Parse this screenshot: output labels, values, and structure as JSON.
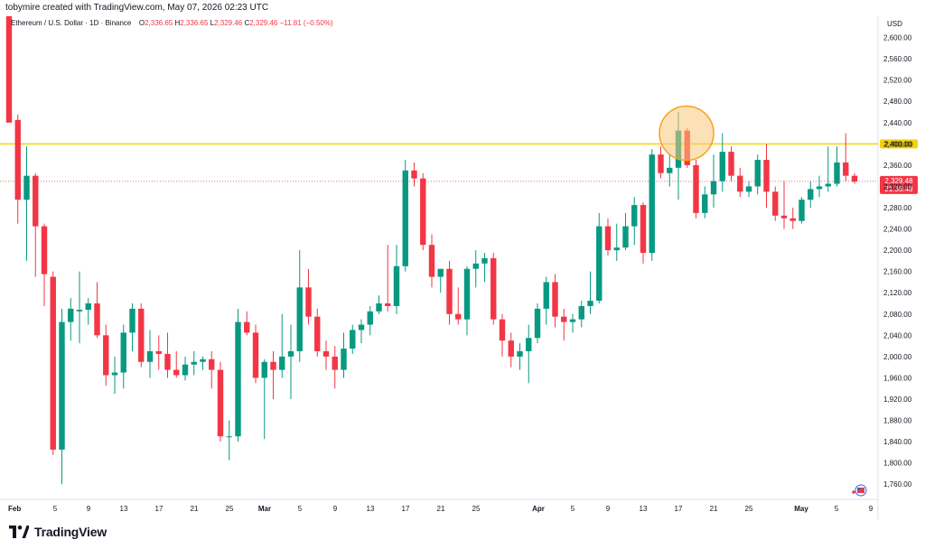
{
  "header": {
    "created_by": "tobymire created with TradingView.com, May 07, 2026 02:23 UTC"
  },
  "legend": {
    "symbol": "Ethereum / U.S. Dollar · 1D · Binance",
    "open_label": "O",
    "open": "2,336.65",
    "high_label": "H",
    "high": "2,336.65",
    "low_label": "L",
    "low": "2,329.46",
    "close_label": "C",
    "close": "2,329.46",
    "change": "−11.81 (−0.50%)"
  },
  "price_axis": {
    "currency": "USD",
    "current_price": "2,329.48",
    "countdown": "21:36:48",
    "level_label": "2,400.00"
  },
  "footer": {
    "brand": "TradingView"
  },
  "colors": {
    "up": "#089981",
    "down": "#f23645",
    "level_line": "#f5d20c",
    "highlight": "#f7a21b"
  },
  "chart_data": {
    "type": "candlestick",
    "title": "",
    "xlabel": "",
    "ylabel": "",
    "ylim": [
      1740,
      2640
    ],
    "y_ticks": [
      1760,
      1800,
      1840,
      1880,
      1920,
      1960,
      2000,
      2040,
      2080,
      2120,
      2160,
      2200,
      2240,
      2280,
      2320,
      2360,
      2400,
      2440,
      2480,
      2520,
      2560,
      2600
    ],
    "y_tick_labels": [
      "1,760.00",
      "1,800.00",
      "1,840.00",
      "1,880.00",
      "1,920.00",
      "1,960.00",
      "2,000.00",
      "2,040.00",
      "2,080.00",
      "2,120.00",
      "2,160.00",
      "2,200.00",
      "2,240.00",
      "2,280.00",
      "2,320.00",
      "2,360.00",
      "2,400.00",
      "2,440.00",
      "2,480.00",
      "2,520.00",
      "2,560.00",
      "2,600.00"
    ],
    "x_ticks": [
      {
        "day": 1,
        "label": "Feb"
      },
      {
        "day": 5,
        "label": "5"
      },
      {
        "day": 9,
        "label": "9"
      },
      {
        "day": 13,
        "label": "13"
      },
      {
        "day": 17,
        "label": "17"
      },
      {
        "day": 21,
        "label": "21"
      },
      {
        "day": 25,
        "label": "25"
      },
      {
        "day": 29,
        "label": "Mar"
      },
      {
        "day": 33,
        "label": "5"
      },
      {
        "day": 37,
        "label": "9"
      },
      {
        "day": 41,
        "label": "13"
      },
      {
        "day": 45,
        "label": "17"
      },
      {
        "day": 49,
        "label": "21"
      },
      {
        "day": 53,
        "label": "25"
      },
      {
        "day": 60,
        "label": "Apr"
      },
      {
        "day": 64,
        "label": "5"
      },
      {
        "day": 68,
        "label": "9"
      },
      {
        "day": 72,
        "label": "13"
      },
      {
        "day": 76,
        "label": "17"
      },
      {
        "day": 80,
        "label": "21"
      },
      {
        "day": 84,
        "label": "25"
      },
      {
        "day": 90,
        "label": "May"
      },
      {
        "day": 94,
        "label": "5"
      },
      {
        "day": 98,
        "label": "9"
      }
    ],
    "level_line": 2400,
    "last_price": 2329.48,
    "highlight_circle": {
      "day": 76.5,
      "price": 2420
    },
    "candles": [
      {
        "o": 2640,
        "h": 2640,
        "l": 2440,
        "c": 2440
      },
      {
        "o": 2445,
        "h": 2455,
        "l": 2250,
        "c": 2295
      },
      {
        "o": 2295,
        "h": 2395,
        "l": 2180,
        "c": 2340
      },
      {
        "o": 2340,
        "h": 2345,
        "l": 2150,
        "c": 2245
      },
      {
        "o": 2245,
        "h": 2250,
        "l": 2095,
        "c": 2155
      },
      {
        "o": 2150,
        "h": 2160,
        "l": 1815,
        "c": 1825
      },
      {
        "o": 1825,
        "h": 2090,
        "l": 1760,
        "c": 2065
      },
      {
        "o": 2065,
        "h": 2110,
        "l": 2030,
        "c": 2090
      },
      {
        "o": 2085,
        "h": 2160,
        "l": 2025,
        "c": 2088
      },
      {
        "o": 2088,
        "h": 2110,
        "l": 2060,
        "c": 2100
      },
      {
        "o": 2100,
        "h": 2140,
        "l": 2035,
        "c": 2040
      },
      {
        "o": 2040,
        "h": 2060,
        "l": 1945,
        "c": 1965
      },
      {
        "o": 1965,
        "h": 2000,
        "l": 1930,
        "c": 1970
      },
      {
        "o": 1970,
        "h": 2060,
        "l": 1940,
        "c": 2045
      },
      {
        "o": 2045,
        "h": 2100,
        "l": 2010,
        "c": 2090
      },
      {
        "o": 2090,
        "h": 2100,
        "l": 1980,
        "c": 1990
      },
      {
        "o": 1990,
        "h": 2050,
        "l": 1960,
        "c": 2010
      },
      {
        "o": 2010,
        "h": 2040,
        "l": 1975,
        "c": 2005
      },
      {
        "o": 2005,
        "h": 2045,
        "l": 1960,
        "c": 1975
      },
      {
        "o": 1975,
        "h": 2010,
        "l": 1960,
        "c": 1965
      },
      {
        "o": 1965,
        "h": 2000,
        "l": 1955,
        "c": 1985
      },
      {
        "o": 1985,
        "h": 2010,
        "l": 1965,
        "c": 1990
      },
      {
        "o": 1990,
        "h": 2000,
        "l": 1975,
        "c": 1995
      },
      {
        "o": 1995,
        "h": 2010,
        "l": 1940,
        "c": 1975
      },
      {
        "o": 1975,
        "h": 1990,
        "l": 1840,
        "c": 1850
      },
      {
        "o": 1850,
        "h": 1880,
        "l": 1805,
        "c": 1850
      },
      {
        "o": 1850,
        "h": 2090,
        "l": 1840,
        "c": 2065
      },
      {
        "o": 2065,
        "h": 2085,
        "l": 2040,
        "c": 2045
      },
      {
        "o": 2045,
        "h": 2060,
        "l": 1950,
        "c": 1960
      },
      {
        "o": 1960,
        "h": 1995,
        "l": 1845,
        "c": 1990
      },
      {
        "o": 1990,
        "h": 2010,
        "l": 1920,
        "c": 1975
      },
      {
        "o": 1975,
        "h": 2080,
        "l": 1960,
        "c": 2000
      },
      {
        "o": 2000,
        "h": 2060,
        "l": 1920,
        "c": 2010
      },
      {
        "o": 2010,
        "h": 2200,
        "l": 1990,
        "c": 2130
      },
      {
        "o": 2130,
        "h": 2165,
        "l": 2060,
        "c": 2075
      },
      {
        "o": 2075,
        "h": 2090,
        "l": 2000,
        "c": 2010
      },
      {
        "o": 2010,
        "h": 2030,
        "l": 1975,
        "c": 2000
      },
      {
        "o": 2000,
        "h": 2020,
        "l": 1940,
        "c": 1975
      },
      {
        "o": 1975,
        "h": 2045,
        "l": 1960,
        "c": 2015
      },
      {
        "o": 2015,
        "h": 2060,
        "l": 2005,
        "c": 2050
      },
      {
        "o": 2050,
        "h": 2070,
        "l": 2025,
        "c": 2060
      },
      {
        "o": 2060,
        "h": 2095,
        "l": 2040,
        "c": 2085
      },
      {
        "o": 2085,
        "h": 2115,
        "l": 2080,
        "c": 2100
      },
      {
        "o": 2100,
        "h": 2210,
        "l": 2085,
        "c": 2095
      },
      {
        "o": 2095,
        "h": 2210,
        "l": 2080,
        "c": 2170
      },
      {
        "o": 2170,
        "h": 2370,
        "l": 2160,
        "c": 2350
      },
      {
        "o": 2350,
        "h": 2365,
        "l": 2320,
        "c": 2335
      },
      {
        "o": 2335,
        "h": 2345,
        "l": 2200,
        "c": 2210
      },
      {
        "o": 2210,
        "h": 2230,
        "l": 2130,
        "c": 2150
      },
      {
        "o": 2150,
        "h": 2160,
        "l": 2120,
        "c": 2165
      },
      {
        "o": 2165,
        "h": 2180,
        "l": 2060,
        "c": 2080
      },
      {
        "o": 2080,
        "h": 2130,
        "l": 2060,
        "c": 2070
      },
      {
        "o": 2070,
        "h": 2170,
        "l": 2040,
        "c": 2165
      },
      {
        "o": 2165,
        "h": 2200,
        "l": 2130,
        "c": 2175
      },
      {
        "o": 2175,
        "h": 2195,
        "l": 2140,
        "c": 2185
      },
      {
        "o": 2185,
        "h": 2195,
        "l": 2060,
        "c": 2070
      },
      {
        "o": 2070,
        "h": 2080,
        "l": 2000,
        "c": 2030
      },
      {
        "o": 2030,
        "h": 2045,
        "l": 1980,
        "c": 2000
      },
      {
        "o": 2000,
        "h": 2025,
        "l": 1975,
        "c": 2010
      },
      {
        "o": 2010,
        "h": 2060,
        "l": 1950,
        "c": 2035
      },
      {
        "o": 2035,
        "h": 2100,
        "l": 2025,
        "c": 2090
      },
      {
        "o": 2090,
        "h": 2150,
        "l": 2060,
        "c": 2140
      },
      {
        "o": 2140,
        "h": 2155,
        "l": 2055,
        "c": 2075
      },
      {
        "o": 2075,
        "h": 2090,
        "l": 2030,
        "c": 2065
      },
      {
        "o": 2065,
        "h": 2080,
        "l": 2045,
        "c": 2070
      },
      {
        "o": 2070,
        "h": 2105,
        "l": 2055,
        "c": 2095
      },
      {
        "o": 2095,
        "h": 2160,
        "l": 2080,
        "c": 2105
      },
      {
        "o": 2105,
        "h": 2270,
        "l": 2100,
        "c": 2245
      },
      {
        "o": 2245,
        "h": 2260,
        "l": 2190,
        "c": 2200
      },
      {
        "o": 2200,
        "h": 2250,
        "l": 2180,
        "c": 2205
      },
      {
        "o": 2205,
        "h": 2270,
        "l": 2200,
        "c": 2245
      },
      {
        "o": 2245,
        "h": 2300,
        "l": 2210,
        "c": 2285
      },
      {
        "o": 2285,
        "h": 2290,
        "l": 2175,
        "c": 2195
      },
      {
        "o": 2195,
        "h": 2390,
        "l": 2180,
        "c": 2380
      },
      {
        "o": 2380,
        "h": 2395,
        "l": 2335,
        "c": 2345
      },
      {
        "o": 2345,
        "h": 2380,
        "l": 2320,
        "c": 2355
      },
      {
        "o": 2355,
        "h": 2460,
        "l": 2295,
        "c": 2425
      },
      {
        "o": 2425,
        "h": 2430,
        "l": 2355,
        "c": 2360
      },
      {
        "o": 2360,
        "h": 2370,
        "l": 2260,
        "c": 2270
      },
      {
        "o": 2270,
        "h": 2320,
        "l": 2260,
        "c": 2305
      },
      {
        "o": 2305,
        "h": 2380,
        "l": 2280,
        "c": 2330
      },
      {
        "o": 2330,
        "h": 2420,
        "l": 2310,
        "c": 2385
      },
      {
        "o": 2385,
        "h": 2395,
        "l": 2330,
        "c": 2340
      },
      {
        "o": 2340,
        "h": 2355,
        "l": 2300,
        "c": 2310
      },
      {
        "o": 2310,
        "h": 2330,
        "l": 2300,
        "c": 2320
      },
      {
        "o": 2320,
        "h": 2380,
        "l": 2305,
        "c": 2370
      },
      {
        "o": 2370,
        "h": 2400,
        "l": 2280,
        "c": 2310
      },
      {
        "o": 2310,
        "h": 2320,
        "l": 2255,
        "c": 2265
      },
      {
        "o": 2265,
        "h": 2330,
        "l": 2240,
        "c": 2260
      },
      {
        "o": 2260,
        "h": 2280,
        "l": 2240,
        "c": 2255
      },
      {
        "o": 2255,
        "h": 2300,
        "l": 2250,
        "c": 2295
      },
      {
        "o": 2295,
        "h": 2330,
        "l": 2280,
        "c": 2315
      },
      {
        "o": 2315,
        "h": 2340,
        "l": 2300,
        "c": 2320
      },
      {
        "o": 2320,
        "h": 2395,
        "l": 2310,
        "c": 2325
      },
      {
        "o": 2325,
        "h": 2395,
        "l": 2320,
        "c": 2365
      },
      {
        "o": 2365,
        "h": 2420,
        "l": 2330,
        "c": 2340
      },
      {
        "o": 2340,
        "h": 2345,
        "l": 2325,
        "c": 2329
      }
    ]
  }
}
